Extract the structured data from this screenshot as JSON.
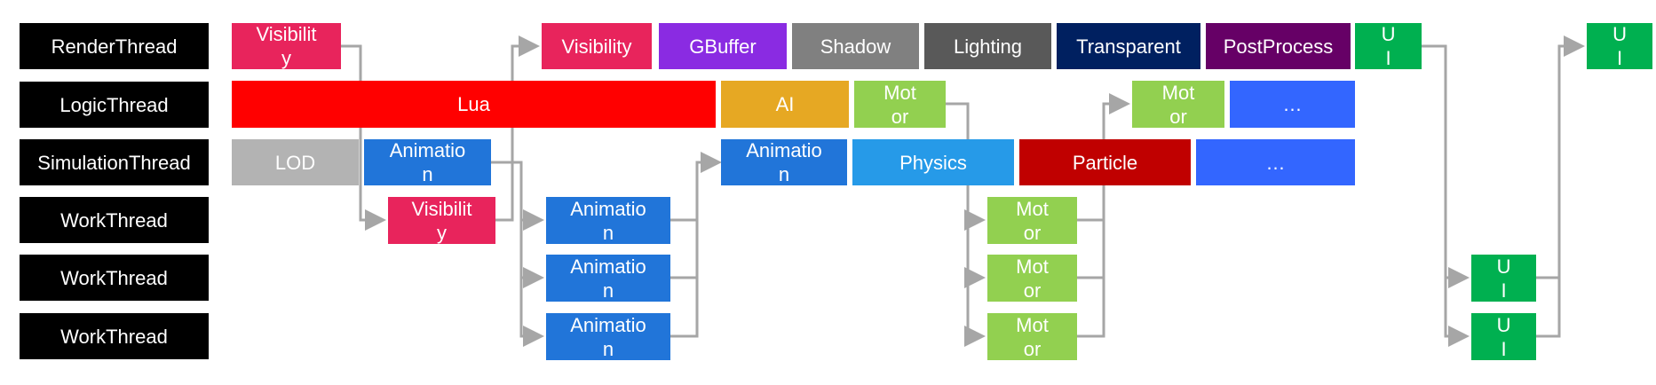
{
  "threads": [
    {
      "label": "RenderThread"
    },
    {
      "label": "LogicThread"
    },
    {
      "label": "SimulationThread"
    },
    {
      "label": "WorkThread"
    },
    {
      "label": "WorkThread"
    },
    {
      "label": "WorkThread"
    }
  ],
  "tasks": {
    "render_visibility": {
      "text": "Visibility",
      "color": "#E8245C"
    },
    "render_visibility_2": {
      "text": "Visibility",
      "color": "#E8245C"
    },
    "render_gbuffer": {
      "text": "GBuffer",
      "color": "#8A2BE2"
    },
    "render_shadow": {
      "text": "Shadow",
      "color": "#808080"
    },
    "render_lighting": {
      "text": "Lighting",
      "color": "#595959"
    },
    "render_transparent": {
      "text": "Transparent",
      "color": "#002060"
    },
    "render_postprocess": {
      "text": "PostProcess",
      "color": "#660066"
    },
    "render_ui_1": {
      "text": "UI",
      "color": "#00B050"
    },
    "render_ui_2": {
      "text": "UI",
      "color": "#00B050"
    },
    "logic_lua": {
      "text": "Lua",
      "color": "#FF0000"
    },
    "logic_ai": {
      "text": "AI",
      "color": "#E6A823"
    },
    "logic_motor_1": {
      "text": "Motor",
      "color": "#92D050"
    },
    "logic_motor_2": {
      "text": "Motor",
      "color": "#92D050"
    },
    "logic_more": {
      "text": "…",
      "color": "#3366FF"
    },
    "sim_lod": {
      "text": "LOD",
      "color": "#B3B3B3"
    },
    "sim_animation_1": {
      "text": "Animation",
      "color": "#2175D9"
    },
    "sim_animation_2": {
      "text": "Animation",
      "color": "#2175D9"
    },
    "sim_physics": {
      "text": "Physics",
      "color": "#269AE8"
    },
    "sim_particle": {
      "text": "Particle",
      "color": "#C00000"
    },
    "sim_more": {
      "text": "…",
      "color": "#3366FF"
    },
    "work1_visibility": {
      "text": "Visibility",
      "color": "#E8245C"
    },
    "work1_animation": {
      "text": "Animation",
      "color": "#2175D9"
    },
    "work1_motor": {
      "text": "Motor",
      "color": "#92D050"
    },
    "work2_animation": {
      "text": "Animation",
      "color": "#2175D9"
    },
    "work2_motor": {
      "text": "Motor",
      "color": "#92D050"
    },
    "work2_ui": {
      "text": "UI",
      "color": "#00B050"
    },
    "work3_animation": {
      "text": "Animation",
      "color": "#2175D9"
    },
    "work3_motor": {
      "text": "Motor",
      "color": "#92D050"
    },
    "work3_ui": {
      "text": "UI",
      "color": "#00B050"
    }
  },
  "connector_color": "#A6A6A6"
}
